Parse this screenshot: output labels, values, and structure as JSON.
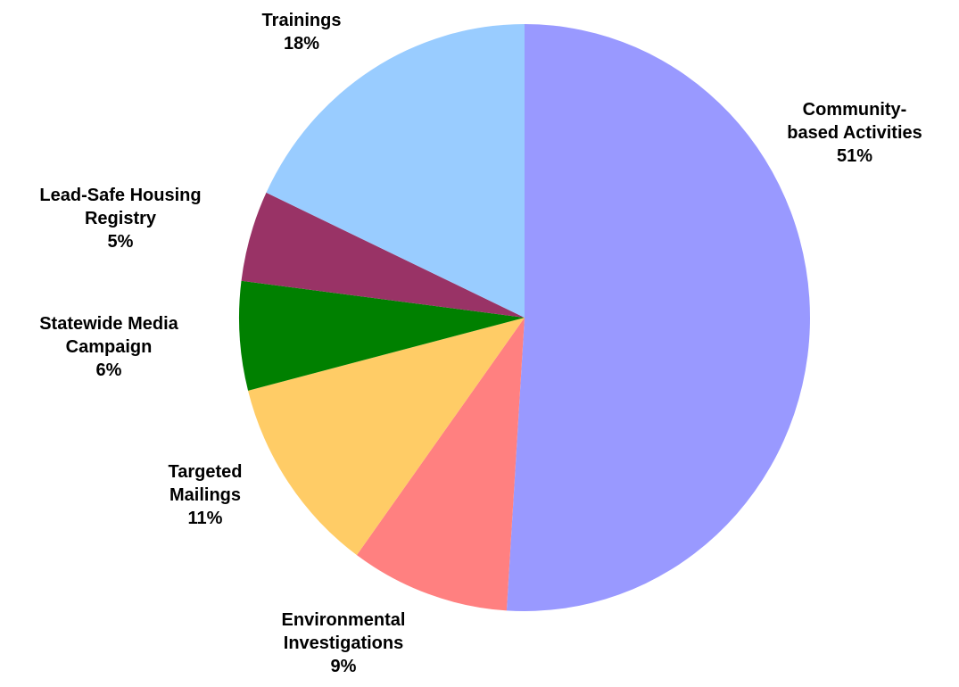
{
  "chart_data": {
    "type": "pie",
    "categories": [
      "Community-\nbased Activities",
      "Environmental\nInvestigations",
      "Targeted\nMailings",
      "Statewide Media\nCampaign",
      "Lead-Safe Housing\nRegistry",
      "Trainings"
    ],
    "values": [
      51,
      9,
      11,
      6,
      5,
      18
    ],
    "value_labels": [
      "51%",
      "9%",
      "11%",
      "6%",
      "5%",
      "18%"
    ],
    "colors": [
      "#9999ff",
      "#ff8080",
      "#ffcc66",
      "#008000",
      "#993366",
      "#99ccff"
    ]
  }
}
